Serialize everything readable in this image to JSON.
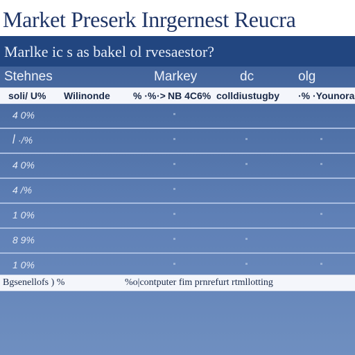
{
  "header": {
    "title": "Market Preserk Inrgernest Reucra"
  },
  "panel": {
    "subtitle": "Marlke ic s as bakel ol rvesaestor?",
    "columns": [
      "Stehnes",
      "Markey",
      "dc",
      "olg"
    ],
    "top_band": [
      "soli/ U%",
      "Wilinonde",
      "% ·%",
      "·>",
      "NB 4C6%",
      "colldiustugby",
      "·% ·Younoras"
    ],
    "rows": [
      {
        "label": "4  0%"
      },
      {
        "label": "ꟾ ·/%"
      },
      {
        "label": "4  0%"
      },
      {
        "label": "4  /%"
      },
      {
        "label": "1  0%"
      },
      {
        "label": "8  9%"
      },
      {
        "label": "1  0%"
      }
    ],
    "bottom_band": [
      "Bgsenellofs ) %",
      "%o|contputer fim prnrefurt rtmllotting"
    ]
  }
}
